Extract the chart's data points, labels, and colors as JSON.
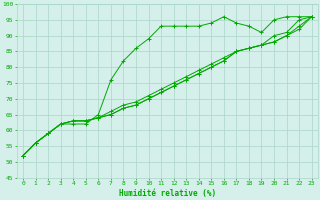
{
  "background_color": "#d5efeb",
  "grid_color": "#aad5c8",
  "line_color": "#00aa00",
  "marker_color": "#00aa00",
  "xlabel": "Humidité relative (%)",
  "xlabel_color": "#00aa00",
  "tick_color": "#00aa00",
  "xlim": [
    -0.5,
    23.5
  ],
  "ylim": [
    45,
    100
  ],
  "yticks": [
    45,
    50,
    55,
    60,
    65,
    70,
    75,
    80,
    85,
    90,
    95,
    100
  ],
  "xticks": [
    0,
    1,
    2,
    3,
    4,
    5,
    6,
    7,
    8,
    9,
    10,
    11,
    12,
    13,
    14,
    15,
    16,
    17,
    18,
    19,
    20,
    21,
    22,
    23
  ],
  "series": [
    [
      52,
      56,
      59,
      62,
      62,
      62,
      65,
      76,
      82,
      86,
      89,
      93,
      93,
      93,
      93,
      94,
      96,
      94,
      93,
      91,
      95,
      96,
      96,
      96
    ],
    [
      52,
      56,
      59,
      62,
      63,
      63,
      64,
      65,
      67,
      68,
      70,
      72,
      74,
      76,
      78,
      80,
      82,
      85,
      86,
      87,
      90,
      91,
      95,
      96
    ],
    [
      52,
      56,
      59,
      62,
      63,
      63,
      64,
      65,
      67,
      68,
      70,
      72,
      74,
      76,
      78,
      80,
      82,
      85,
      86,
      87,
      88,
      90,
      92,
      96
    ],
    [
      52,
      56,
      59,
      62,
      63,
      63,
      64,
      66,
      68,
      69,
      71,
      73,
      75,
      77,
      79,
      81,
      83,
      85,
      86,
      87,
      88,
      90,
      93,
      96
    ]
  ]
}
